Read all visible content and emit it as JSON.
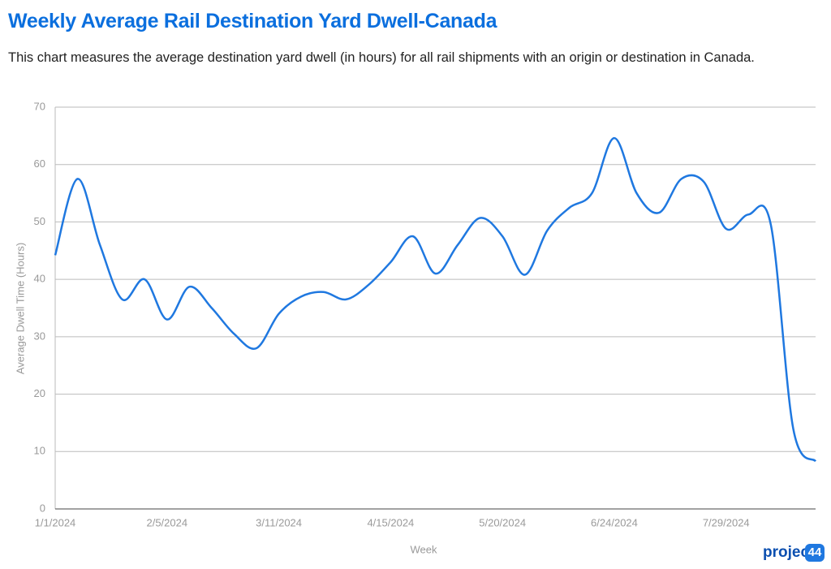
{
  "chart_data": {
    "type": "line",
    "title": "Weekly Average Rail Destination Yard Dwell-Canada",
    "subtitle": "This chart measures the average destination yard dwell (in hours) for all rail shipments with an origin or destination in Canada.",
    "x_label": "Week",
    "y_label": "Average Dwell Time (Hours)",
    "categories": [
      "1/1/2024",
      null,
      null,
      null,
      null,
      "2/5/2024",
      null,
      null,
      null,
      null,
      "3/11/2024",
      null,
      null,
      null,
      null,
      "4/15/2024",
      null,
      null,
      null,
      null,
      "5/20/2024",
      null,
      null,
      null,
      null,
      "6/24/2024",
      null,
      null,
      null,
      null,
      "7/29/2024",
      null,
      null,
      null,
      null
    ],
    "series": [
      {
        "name": "Average Dwell Time (Hours)",
        "color": "#1f78e0",
        "values": [
          44.2,
          57.5,
          46,
          36.5,
          40,
          33,
          38.7,
          35,
          30.5,
          28,
          34,
          37,
          37.8,
          36.5,
          39,
          43,
          47.5,
          41,
          46,
          50.7,
          47.5,
          40.8,
          48.5,
          52.5,
          55,
          64.6,
          55,
          51.6,
          57.5,
          57,
          48.8,
          51.3,
          49.5,
          14,
          8.3
        ]
      }
    ],
    "ylim": [
      0,
      70
    ],
    "yticks": [
      0,
      10,
      20,
      30,
      40,
      50,
      60,
      70
    ],
    "grid": true
  },
  "logo": {
    "text": "project",
    "badge": "44"
  }
}
